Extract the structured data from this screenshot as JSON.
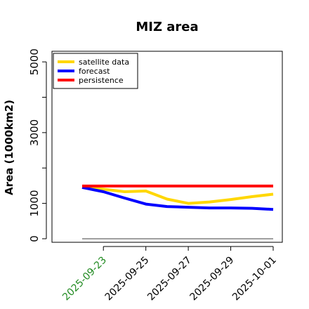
{
  "chart_data": {
    "type": "line",
    "title": "MIZ area",
    "xlabel": "",
    "ylabel": "Area (1000km2)",
    "x": [
      "2025-09-22",
      "2025-09-23",
      "2025-09-24",
      "2025-09-25",
      "2025-09-26",
      "2025-09-27",
      "2025-09-28",
      "2025-09-29",
      "2025-09-30",
      "2025-10-01"
    ],
    "xticks": [
      "2025-09-23",
      "2025-09-25",
      "2025-09-27",
      "2025-09-29",
      "2025-10-01"
    ],
    "xtick_colors": [
      "#228B22",
      "#000000",
      "#000000",
      "#000000",
      "#000000"
    ],
    "yticks": [
      0,
      1000,
      3000,
      5000
    ],
    "ylim": [
      -100,
      5300
    ],
    "series": [
      {
        "name": "satellite data",
        "color": "#FFD700",
        "values": [
          1450,
          1400,
          1330,
          1350,
          1120,
          1000,
          1040,
          1110,
          1190,
          1260
        ]
      },
      {
        "name": "forecast",
        "color": "#0000FF",
        "values": [
          1450,
          1330,
          1150,
          980,
          910,
          890,
          870,
          870,
          860,
          830
        ]
      },
      {
        "name": "persistence",
        "color": "#FF0000",
        "values": [
          1490,
          1490,
          1490,
          1490,
          1490,
          1490,
          1490,
          1490,
          1490,
          1490
        ]
      }
    ],
    "baseline": {
      "value": 0,
      "color": "#808080"
    },
    "legend_position": "top-left",
    "grid": false
  }
}
